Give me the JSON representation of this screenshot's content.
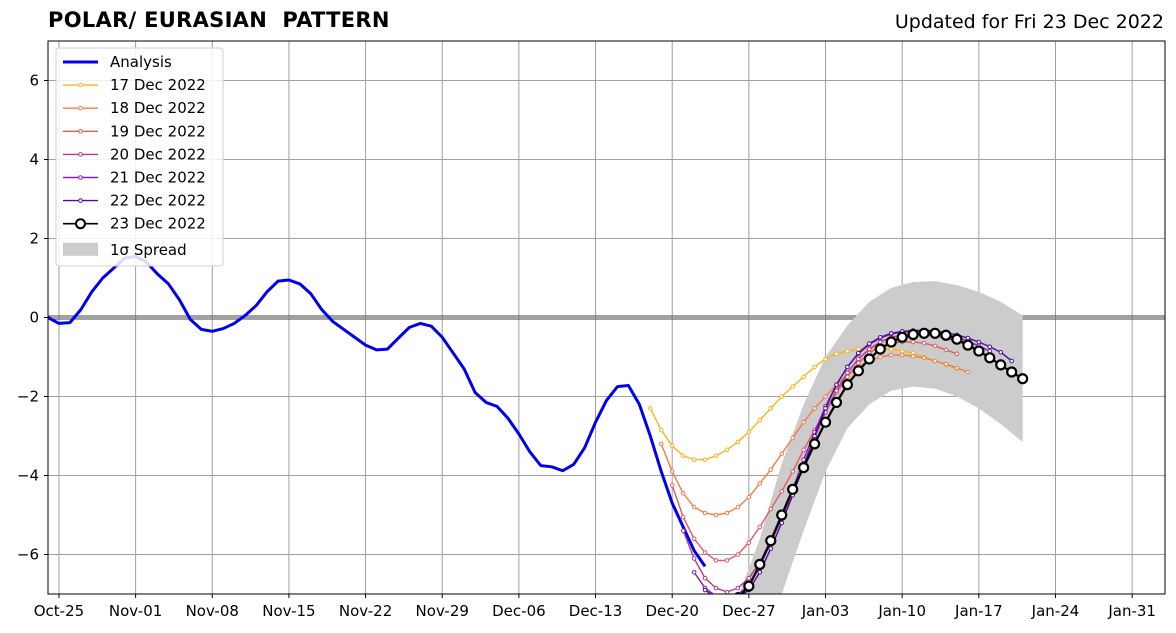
{
  "chart_data": {
    "type": "line",
    "title": "POLAR/ EURASIAN  PATTERN",
    "subtitle": "Updated for Fri 23 Dec 2022",
    "xlabel": "",
    "ylabel": "",
    "xlim": [
      "2022-10-24",
      "2023-02-03"
    ],
    "ylim": [
      -7,
      7
    ],
    "grid": true,
    "legend_position": "top-left",
    "x_ticks": [
      "Oct-25",
      "Nov-01",
      "Nov-08",
      "Nov-15",
      "Nov-22",
      "Nov-29",
      "Dec-06",
      "Dec-13",
      "Dec-20",
      "Dec-27",
      "Jan-03",
      "Jan-10",
      "Jan-17",
      "Jan-24",
      "Jan-31"
    ],
    "x_tick_dates": [
      "2022-10-25",
      "2022-11-01",
      "2022-11-08",
      "2022-11-15",
      "2022-11-22",
      "2022-11-29",
      "2022-12-06",
      "2022-12-13",
      "2022-12-20",
      "2022-12-27",
      "2023-01-03",
      "2023-01-10",
      "2023-01-17",
      "2023-01-24",
      "2023-01-31"
    ],
    "y_ticks": [
      6,
      4,
      2,
      0,
      -2,
      -4,
      -6
    ],
    "y_tick_labels": [
      "6",
      "4",
      "2",
      "0",
      "−2",
      "−4",
      "−6"
    ],
    "series": [
      {
        "name": "Analysis",
        "color": "#0000ee",
        "style": "thick",
        "x": [
          "2022-10-24",
          "2022-10-25",
          "2022-10-26",
          "2022-10-27",
          "2022-10-28",
          "2022-10-29",
          "2022-10-30",
          "2022-10-31",
          "2022-11-01",
          "2022-11-02",
          "2022-11-03",
          "2022-11-04",
          "2022-11-05",
          "2022-11-06",
          "2022-11-07",
          "2022-11-08",
          "2022-11-09",
          "2022-11-10",
          "2022-11-11",
          "2022-11-12",
          "2022-11-13",
          "2022-11-14",
          "2022-11-15",
          "2022-11-16",
          "2022-11-17",
          "2022-11-18",
          "2022-11-19",
          "2022-11-20",
          "2022-11-21",
          "2022-11-22",
          "2022-11-23",
          "2022-11-24",
          "2022-11-25",
          "2022-11-26",
          "2022-11-27",
          "2022-11-28",
          "2022-11-29",
          "2022-11-30",
          "2022-12-01",
          "2022-12-02",
          "2022-12-03",
          "2022-12-04",
          "2022-12-05",
          "2022-12-06",
          "2022-12-07",
          "2022-12-08",
          "2022-12-09",
          "2022-12-10",
          "2022-12-11",
          "2022-12-12",
          "2022-12-13",
          "2022-12-14",
          "2022-12-15",
          "2022-12-16",
          "2022-12-17",
          "2022-12-18",
          "2022-12-19",
          "2022-12-20",
          "2022-12-21",
          "2022-12-22",
          "2022-12-23"
        ],
        "y": [
          0.0,
          -0.15,
          -0.13,
          0.2,
          0.65,
          1.0,
          1.25,
          1.5,
          1.55,
          1.4,
          1.1,
          0.85,
          0.45,
          -0.05,
          -0.3,
          -0.35,
          -0.28,
          -0.15,
          0.05,
          0.3,
          0.65,
          0.92,
          0.95,
          0.85,
          0.6,
          0.2,
          -0.1,
          -0.3,
          -0.5,
          -0.7,
          -0.82,
          -0.8,
          -0.52,
          -0.25,
          -0.15,
          -0.22,
          -0.5,
          -0.9,
          -1.3,
          -1.9,
          -2.15,
          -2.25,
          -2.55,
          -2.95,
          -3.4,
          -3.75,
          -3.78,
          -3.88,
          -3.72,
          -3.3,
          -2.65,
          -2.1,
          -1.75,
          -1.72,
          -2.2,
          -3.0,
          -3.9,
          -4.7,
          -5.3,
          -5.9,
          -6.3
        ]
      },
      {
        "name": "17 Dec 2022",
        "color": "#fbb41c",
        "style": "thin",
        "x": [
          "2022-12-18",
          "2022-12-19",
          "2022-12-20",
          "2022-12-21",
          "2022-12-22",
          "2022-12-23",
          "2022-12-24",
          "2022-12-25",
          "2022-12-26",
          "2022-12-27",
          "2022-12-28",
          "2022-12-29",
          "2022-12-30",
          "2022-12-31",
          "2023-01-01",
          "2023-01-02",
          "2023-01-03",
          "2023-01-04",
          "2023-01-05",
          "2023-01-06",
          "2023-01-07",
          "2023-01-08",
          "2023-01-09",
          "2023-01-10",
          "2023-01-11",
          "2023-01-12",
          "2023-01-13",
          "2023-01-14",
          "2023-01-15"
        ],
        "y": [
          -2.3,
          -2.85,
          -3.25,
          -3.5,
          -3.6,
          -3.6,
          -3.5,
          -3.35,
          -3.15,
          -2.9,
          -2.6,
          -2.3,
          -2.0,
          -1.75,
          -1.5,
          -1.25,
          -1.05,
          -0.92,
          -0.85,
          -0.8,
          -0.78,
          -0.78,
          -0.8,
          -0.85,
          -0.9,
          -1.0,
          -1.1,
          -1.2,
          -1.3
        ]
      },
      {
        "name": "18 Dec 2022",
        "color": "#f37d44",
        "style": "thin",
        "x": [
          "2022-12-19",
          "2022-12-20",
          "2022-12-21",
          "2022-12-22",
          "2022-12-23",
          "2022-12-24",
          "2022-12-25",
          "2022-12-26",
          "2022-12-27",
          "2022-12-28",
          "2022-12-29",
          "2022-12-30",
          "2022-12-31",
          "2023-01-01",
          "2023-01-02",
          "2023-01-03",
          "2023-01-04",
          "2023-01-05",
          "2023-01-06",
          "2023-01-07",
          "2023-01-08",
          "2023-01-09",
          "2023-01-10",
          "2023-01-11",
          "2023-01-12",
          "2023-01-13",
          "2023-01-14",
          "2023-01-15",
          "2023-01-16"
        ],
        "y": [
          -3.2,
          -3.9,
          -4.45,
          -4.8,
          -4.95,
          -5.0,
          -4.95,
          -4.8,
          -4.55,
          -4.2,
          -3.85,
          -3.45,
          -3.05,
          -2.65,
          -2.3,
          -2.0,
          -1.7,
          -1.45,
          -1.25,
          -1.1,
          -1.0,
          -0.95,
          -0.95,
          -0.98,
          -1.02,
          -1.1,
          -1.18,
          -1.28,
          -1.38
        ]
      },
      {
        "name": "19 Dec 2022",
        "color": "#e25a5f",
        "style": "thin",
        "x": [
          "2022-12-20",
          "2022-12-21",
          "2022-12-22",
          "2022-12-23",
          "2022-12-24",
          "2022-12-25",
          "2022-12-26",
          "2022-12-27",
          "2022-12-28",
          "2022-12-29",
          "2022-12-30",
          "2022-12-31",
          "2023-01-01",
          "2023-01-02",
          "2023-01-03",
          "2023-01-04",
          "2023-01-05",
          "2023-01-06",
          "2023-01-07",
          "2023-01-08",
          "2023-01-09",
          "2023-01-10",
          "2023-01-11",
          "2023-01-12",
          "2023-01-13",
          "2023-01-14",
          "2023-01-15"
        ],
        "y": [
          -4.25,
          -5.05,
          -5.6,
          -5.95,
          -6.15,
          -6.15,
          -6.0,
          -5.7,
          -5.3,
          -4.85,
          -4.4,
          -3.9,
          -3.35,
          -2.85,
          -2.35,
          -1.9,
          -1.5,
          -1.15,
          -0.9,
          -0.72,
          -0.65,
          -0.62,
          -0.62,
          -0.65,
          -0.72,
          -0.82,
          -0.92
        ]
      },
      {
        "name": "20 Dec 2022",
        "color": "#b13a8c",
        "style": "thin",
        "x": [
          "2022-12-21",
          "2022-12-22",
          "2022-12-23",
          "2022-12-24",
          "2022-12-25",
          "2022-12-26",
          "2022-12-27",
          "2022-12-28",
          "2022-12-29",
          "2022-12-30",
          "2022-12-31",
          "2023-01-01",
          "2023-01-02",
          "2023-01-03",
          "2023-01-04",
          "2023-01-05",
          "2023-01-06",
          "2023-01-07",
          "2023-01-08",
          "2023-01-09",
          "2023-01-10",
          "2023-01-11",
          "2023-01-12",
          "2023-01-13",
          "2023-01-14",
          "2023-01-15",
          "2023-01-16"
        ],
        "y": [
          -5.4,
          -6.1,
          -6.6,
          -6.85,
          -6.95,
          -6.85,
          -6.6,
          -6.2,
          -5.7,
          -5.1,
          -4.45,
          -3.75,
          -3.05,
          -2.4,
          -1.85,
          -1.4,
          -1.05,
          -0.8,
          -0.62,
          -0.5,
          -0.45,
          -0.43,
          -0.43,
          -0.46,
          -0.52,
          -0.6,
          -0.7
        ]
      },
      {
        "name": "21 Dec 2022",
        "color": "#8a1bb5",
        "style": "thin",
        "x": [
          "2022-12-22",
          "2022-12-23",
          "2022-12-24",
          "2022-12-25",
          "2022-12-26",
          "2022-12-27",
          "2022-12-28",
          "2022-12-29",
          "2022-12-30",
          "2022-12-31",
          "2023-01-01",
          "2023-01-02",
          "2023-01-03",
          "2023-01-04",
          "2023-01-05",
          "2023-01-06",
          "2023-01-07",
          "2023-01-08",
          "2023-01-09",
          "2023-01-10",
          "2023-01-11",
          "2023-01-12",
          "2023-01-13",
          "2023-01-14",
          "2023-01-15",
          "2023-01-16",
          "2023-01-17",
          "2023-01-18"
        ],
        "y": [
          -6.45,
          -6.85,
          -7.05,
          -7.1,
          -7.0,
          -6.8,
          -6.3,
          -5.7,
          -5.05,
          -4.35,
          -3.6,
          -2.9,
          -2.25,
          -1.7,
          -1.25,
          -0.92,
          -0.68,
          -0.52,
          -0.42,
          -0.37,
          -0.35,
          -0.35,
          -0.37,
          -0.42,
          -0.5,
          -0.6,
          -0.72,
          -0.85
        ]
      },
      {
        "name": "22 Dec 2022",
        "color": "#4a0d9e",
        "style": "thin",
        "x": [
          "2022-12-23",
          "2022-12-24",
          "2022-12-25",
          "2022-12-26",
          "2022-12-27",
          "2022-12-28",
          "2022-12-29",
          "2022-12-30",
          "2022-12-31",
          "2023-01-01",
          "2023-01-02",
          "2023-01-03",
          "2023-01-04",
          "2023-01-05",
          "2023-01-06",
          "2023-01-07",
          "2023-01-08",
          "2023-01-09",
          "2023-01-10",
          "2023-01-11",
          "2023-01-12",
          "2023-01-13",
          "2023-01-14",
          "2023-01-15",
          "2023-01-16",
          "2023-01-17",
          "2023-01-18",
          "2023-01-19",
          "2023-01-20"
        ],
        "y": [
          -6.9,
          -7.1,
          -7.2,
          -7.1,
          -6.9,
          -6.45,
          -5.85,
          -5.2,
          -4.5,
          -3.75,
          -3.0,
          -2.3,
          -1.7,
          -1.25,
          -0.9,
          -0.66,
          -0.5,
          -0.4,
          -0.35,
          -0.33,
          -0.32,
          -0.34,
          -0.38,
          -0.44,
          -0.52,
          -0.62,
          -0.74,
          -0.88,
          -1.1
        ]
      },
      {
        "name": "23 Dec 2022",
        "color": "#000000",
        "style": "forecast",
        "x": [
          "2022-12-24",
          "2022-12-25",
          "2022-12-26",
          "2022-12-27",
          "2022-12-28",
          "2022-12-29",
          "2022-12-30",
          "2022-12-31",
          "2023-01-01",
          "2023-01-02",
          "2023-01-03",
          "2023-01-04",
          "2023-01-05",
          "2023-01-06",
          "2023-01-07",
          "2023-01-08",
          "2023-01-09",
          "2023-01-10",
          "2023-01-11",
          "2023-01-12",
          "2023-01-13",
          "2023-01-14",
          "2023-01-15",
          "2023-01-16",
          "2023-01-17",
          "2023-01-18",
          "2023-01-19",
          "2023-01-20",
          "2023-01-21"
        ],
        "y": [
          -7.4,
          -7.3,
          -7.1,
          -6.8,
          -6.25,
          -5.65,
          -5.0,
          -4.35,
          -3.8,
          -3.2,
          -2.65,
          -2.15,
          -1.7,
          -1.35,
          -1.05,
          -0.8,
          -0.62,
          -0.5,
          -0.43,
          -0.4,
          -0.4,
          -0.45,
          -0.55,
          -0.7,
          -0.85,
          -1.02,
          -1.2,
          -1.38,
          -1.55
        ]
      }
    ],
    "spread": {
      "name": "1σ Spread",
      "color": "#cccccc",
      "x": [
        "2022-12-24",
        "2022-12-26",
        "2022-12-28",
        "2022-12-30",
        "2023-01-01",
        "2023-01-03",
        "2023-01-05",
        "2023-01-07",
        "2023-01-09",
        "2023-01-11",
        "2023-01-13",
        "2023-01-15",
        "2023-01-17",
        "2023-01-19",
        "2023-01-21"
      ],
      "upper": [
        -7.4,
        -7.1,
        -5.6,
        -3.7,
        -2.2,
        -1.0,
        -0.2,
        0.4,
        0.75,
        0.9,
        0.92,
        0.82,
        0.65,
        0.4,
        0.05
      ],
      "lower": [
        -7.4,
        -7.2,
        -7.4,
        -7.0,
        -5.4,
        -3.9,
        -2.8,
        -2.2,
        -1.85,
        -1.75,
        -1.8,
        -2.0,
        -2.3,
        -2.7,
        -3.15
      ]
    }
  }
}
